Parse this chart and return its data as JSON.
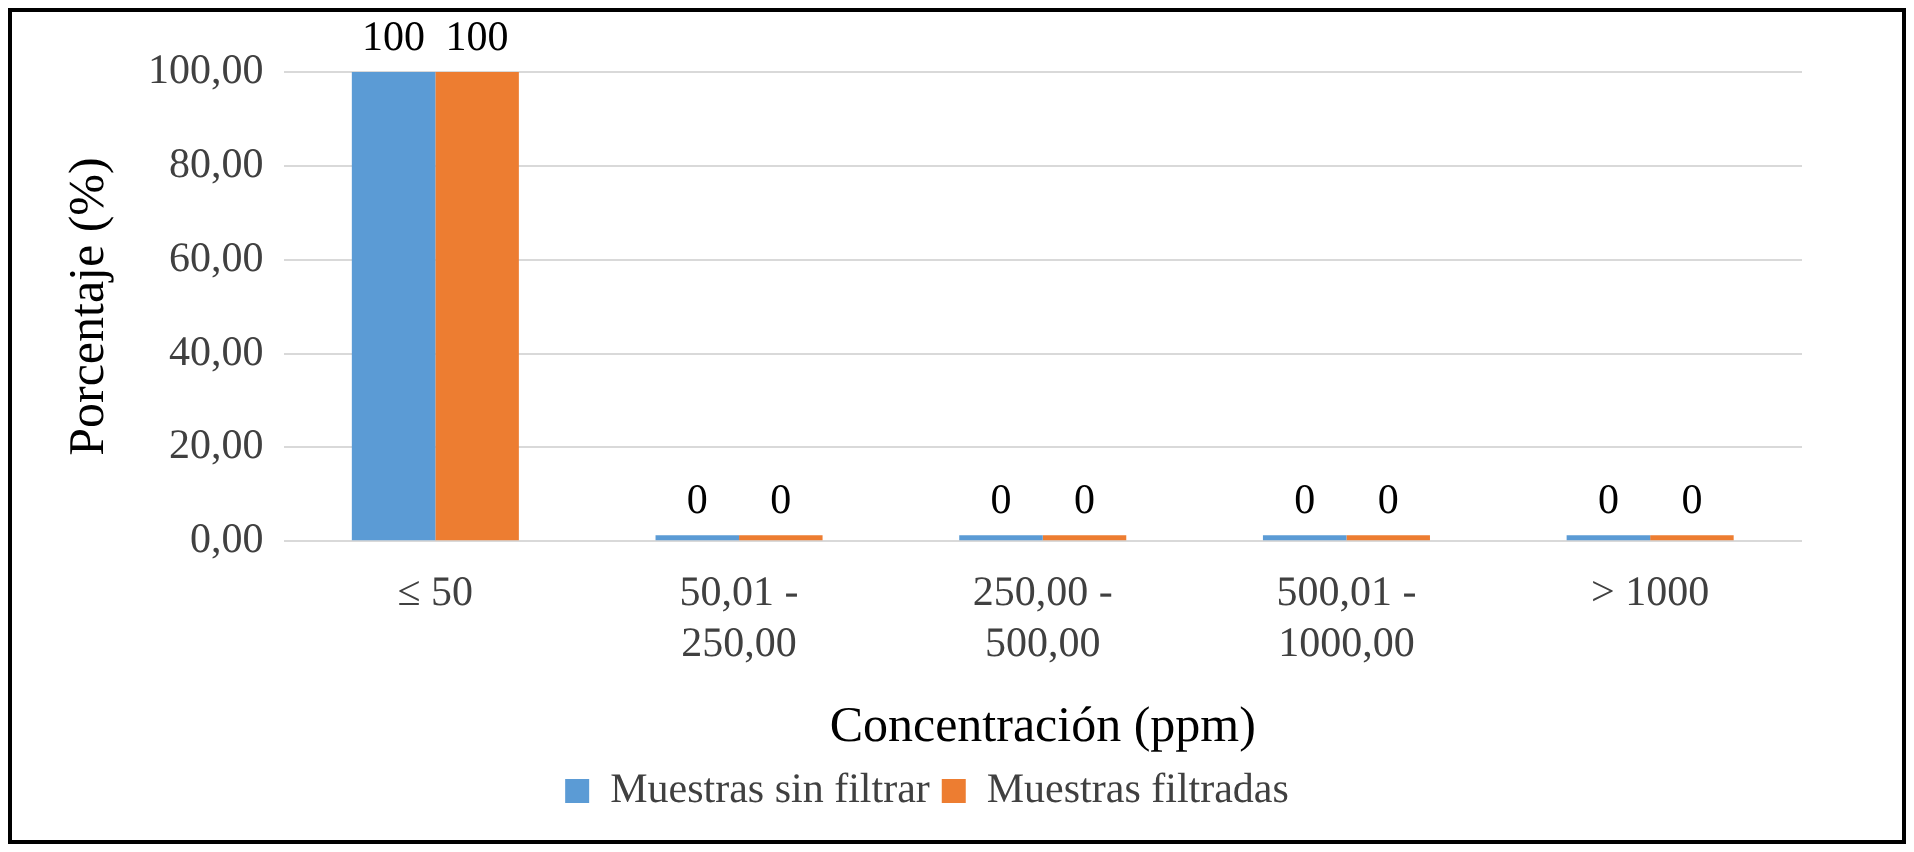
{
  "chart_data": {
    "type": "bar",
    "xlabel": "Concentración (ppm)",
    "ylabel": "Porcentaje (%)",
    "categories": [
      "≤ 50",
      "50,01 - 250,00",
      "250,00 - 500,00",
      "500,01 - 1000,00",
      "> 1000"
    ],
    "series": [
      {
        "name": "Muestras sin filtrar",
        "color": "#5b9bd5",
        "values": [
          100,
          0,
          0,
          0,
          0
        ]
      },
      {
        "name": "Muestras filtradas",
        "color": "#ed7d31",
        "values": [
          100,
          0,
          0,
          0,
          0
        ]
      }
    ],
    "ylim": [
      0,
      100
    ],
    "yticks": [
      {
        "value": 0,
        "label": "0,00"
      },
      {
        "value": 20,
        "label": "20,00"
      },
      {
        "value": 40,
        "label": "40,00"
      },
      {
        "value": 60,
        "label": "60,00"
      },
      {
        "value": 80,
        "label": "80,00"
      },
      {
        "value": 100,
        "label": "100,00"
      }
    ],
    "grid": "y",
    "legend": "bottom",
    "data_labels": true
  }
}
